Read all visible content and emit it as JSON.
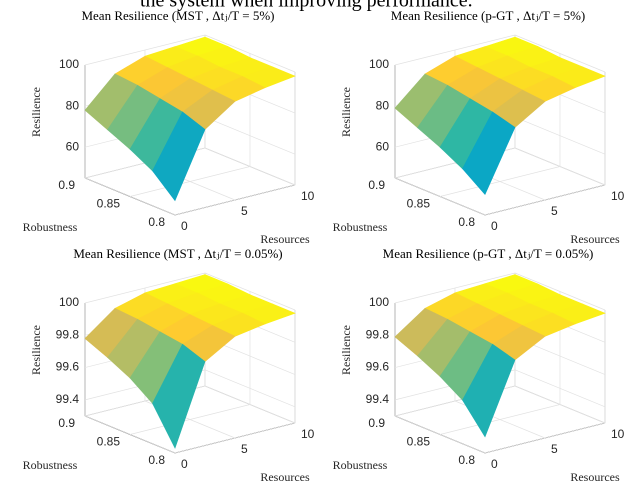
{
  "caption_fragment": "the system when improving performance.",
  "chart_data": [
    {
      "type": "surface",
      "title": "Mean Resilience (MST , Δtⱼ/T = 5%)",
      "colormap": "parula",
      "xlabel": "Robustness",
      "ylabel": "Resources",
      "zlabel": "Resilience",
      "x": [
        0.8,
        0.825,
        0.85,
        0.875,
        0.9
      ],
      "y": [
        0,
        2.5,
        5,
        7.5,
        10
      ],
      "z": [
        [
          52,
          83,
          93,
          96,
          98
        ],
        [
          62,
          87,
          94,
          97,
          98
        ],
        [
          68,
          89,
          95,
          97,
          98
        ],
        [
          73,
          91,
          96,
          98,
          99
        ],
        [
          78,
          92,
          97,
          98,
          99
        ]
      ],
      "xlim": [
        0.8,
        0.9
      ],
      "xticks": [
        0.8,
        0.85,
        0.9
      ],
      "ylim": [
        0,
        10
      ],
      "yticks": [
        0,
        5,
        10
      ],
      "zlim": [
        45,
        100
      ],
      "zticks": [
        60,
        80,
        100
      ],
      "grid": true
    },
    {
      "type": "surface",
      "title": "Mean Resilience (p-GT , Δtⱼ/T = 5%)",
      "colormap": "parula",
      "xlabel": "Robustness",
      "ylabel": "Resources",
      "zlabel": "Resilience",
      "x": [
        0.8,
        0.825,
        0.85,
        0.875,
        0.9
      ],
      "y": [
        0,
        2.5,
        5,
        7.5,
        10
      ],
      "z": [
        [
          55,
          84,
          93,
          96,
          98
        ],
        [
          63,
          87,
          94,
          97,
          98
        ],
        [
          69,
          89,
          95,
          97,
          98
        ],
        [
          74,
          91,
          96,
          98,
          99
        ],
        [
          79,
          92,
          97,
          98,
          99
        ]
      ],
      "xlim": [
        0.8,
        0.9
      ],
      "xticks": [
        0.8,
        0.85,
        0.9
      ],
      "ylim": [
        0,
        10
      ],
      "yticks": [
        0,
        5,
        10
      ],
      "zlim": [
        45,
        100
      ],
      "zticks": [
        60,
        80,
        100
      ],
      "grid": true
    },
    {
      "type": "surface",
      "title": "Mean Resilience (MST , Δtⱼ/T = 0.05%)",
      "colormap": "parula",
      "xlabel": "Robustness",
      "ylabel": "Resources",
      "zlabel": "Resilience",
      "x": [
        0.8,
        0.825,
        0.85,
        0.875,
        0.9
      ],
      "y": [
        0,
        2.5,
        5,
        7.5,
        10
      ],
      "z": [
        [
          99.33,
          99.82,
          99.93,
          99.96,
          99.98
        ],
        [
          99.55,
          99.87,
          99.94,
          99.97,
          99.98
        ],
        [
          99.65,
          99.89,
          99.95,
          99.97,
          99.98
        ],
        [
          99.72,
          99.91,
          99.96,
          99.98,
          99.99
        ],
        [
          99.78,
          99.92,
          99.97,
          99.98,
          99.99
        ]
      ],
      "xlim": [
        0.8,
        0.9
      ],
      "xticks": [
        0.8,
        0.85,
        0.9
      ],
      "ylim": [
        0,
        10
      ],
      "yticks": [
        0,
        5,
        10
      ],
      "zlim": [
        99.3,
        100
      ],
      "zticks": [
        99.4,
        99.6,
        99.8,
        100
      ],
      "grid": true
    },
    {
      "type": "surface",
      "title": "Mean Resilience (p-GT , Δtⱼ/T = 0.05%)",
      "colormap": "parula",
      "xlabel": "Robustness",
      "ylabel": "Resources",
      "zlabel": "Resilience",
      "x": [
        0.8,
        0.825,
        0.85,
        0.875,
        0.9
      ],
      "y": [
        0,
        2.5,
        5,
        7.5,
        10
      ],
      "z": [
        [
          99.4,
          99.83,
          99.93,
          99.96,
          99.98
        ],
        [
          99.57,
          99.87,
          99.94,
          99.97,
          99.98
        ],
        [
          99.66,
          99.89,
          99.95,
          99.97,
          99.98
        ],
        [
          99.73,
          99.91,
          99.96,
          99.98,
          99.99
        ],
        [
          99.79,
          99.92,
          99.97,
          99.98,
          99.99
        ]
      ],
      "xlim": [
        0.8,
        0.9
      ],
      "xticks": [
        0.8,
        0.85,
        0.9
      ],
      "ylim": [
        0,
        10
      ],
      "yticks": [
        0,
        5,
        10
      ],
      "zlim": [
        99.3,
        100
      ],
      "zticks": [
        99.4,
        99.6,
        99.8,
        100
      ],
      "grid": true
    }
  ]
}
